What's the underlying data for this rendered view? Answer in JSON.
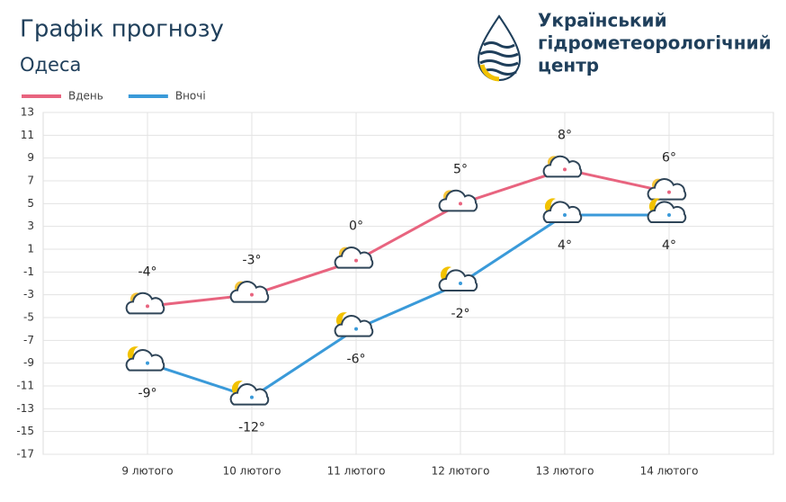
{
  "chart_data": {
    "type": "line",
    "title": "Графік прогнозу",
    "subtitle": "Одеса",
    "logo_text": [
      "Український",
      "гідрометеорологічний",
      "центр"
    ],
    "categories": [
      "9 лютого",
      "10 лютого",
      "11 лютого",
      "12 лютого",
      "13 лютого",
      "14 лютого"
    ],
    "series": [
      {
        "name": "Вдень",
        "color": "#e8647f",
        "values": [
          -4,
          -3,
          0,
          5,
          8,
          6
        ],
        "value_labels": [
          "-4°",
          "-3°",
          "0°",
          "5°",
          "8°",
          "6°"
        ]
      },
      {
        "name": "Вночі",
        "color": "#3a9ad9",
        "values": [
          -9,
          -12,
          -6,
          -2,
          4,
          4
        ],
        "value_labels": [
          "-9°",
          "-12°",
          "-6°",
          "-2°",
          "4°",
          "4°"
        ]
      }
    ],
    "ylim": [
      -17,
      13
    ],
    "yticks": [
      13,
      11,
      9,
      7,
      5,
      3,
      1,
      -1,
      -3,
      -5,
      -7,
      -9,
      -11,
      -13,
      -15,
      -17
    ],
    "grid": true,
    "legend": "top-left"
  }
}
